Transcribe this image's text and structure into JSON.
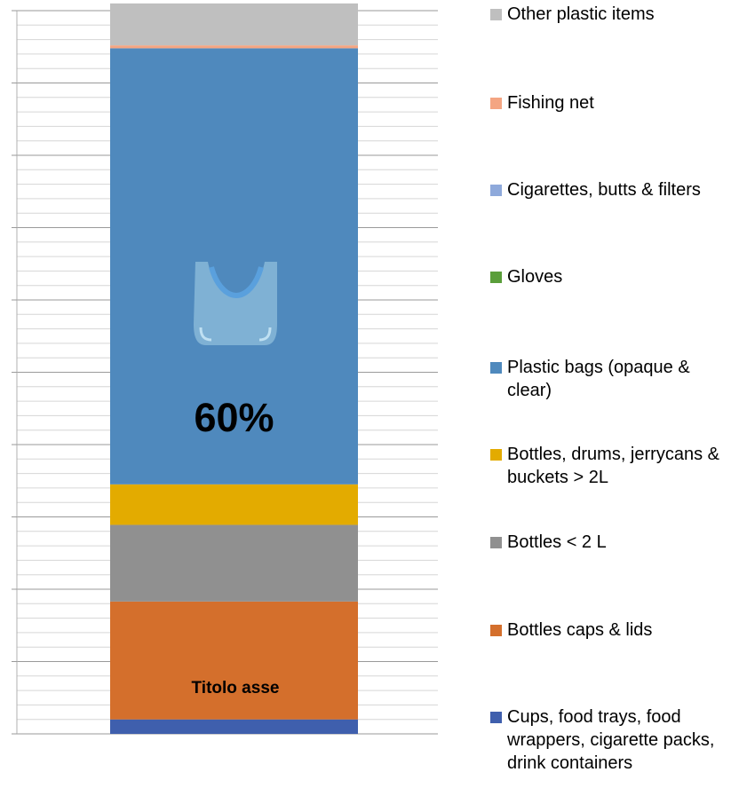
{
  "chart_data": {
    "type": "bar",
    "stacked": true,
    "categories": [
      ""
    ],
    "xlabel": "Titolo asse",
    "ylim": [
      0,
      100
    ],
    "grid": true,
    "legend_position": "right",
    "annotation": "60%",
    "icon": "plastic-bag-icon",
    "series": [
      {
        "name": "Cups, food trays, food wrappers, cigarette packs, drink containers",
        "values": [
          2
        ],
        "color": "#3f5fad"
      },
      {
        "name": "Bottles caps & lids",
        "values": [
          16.3
        ],
        "color": "#d46f2c"
      },
      {
        "name": "Bottles < 2 L",
        "values": [
          10.6
        ],
        "color": "#909090"
      },
      {
        "name": "Bottles, drums, jerrycans & buckets > 2L",
        "values": [
          5.6
        ],
        "color": "#e3ab00"
      },
      {
        "name": "Plastic bags (opaque & clear)",
        "values": [
          60.3
        ],
        "color": "#4f89bd"
      },
      {
        "name": "Gloves",
        "values": [
          0
        ],
        "color": "#5a9e3a"
      },
      {
        "name": "Cigarettes, butts & filters",
        "values": [
          0
        ],
        "color": "#8ea9db"
      },
      {
        "name": "Fishing net",
        "values": [
          0.4
        ],
        "color": "#f4a582"
      },
      {
        "name": "Other plastic items",
        "values": [
          5.8
        ],
        "color": "#bfbfbf"
      }
    ]
  }
}
